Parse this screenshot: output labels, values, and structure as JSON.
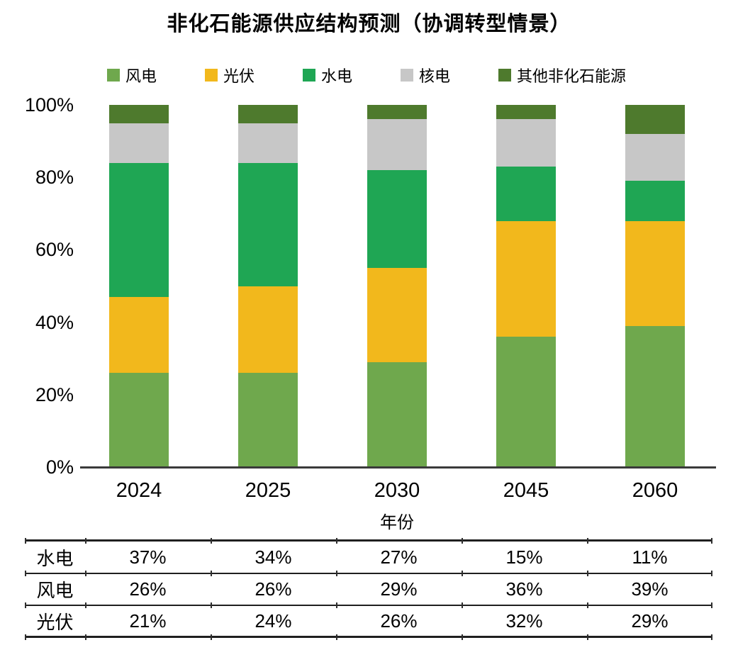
{
  "title": "非化石能源供应结构预测（协调转型情景）",
  "chart_data": {
    "type": "bar",
    "stacked": true,
    "title": "非化石能源供应结构预测（协调转型情景）",
    "categories": [
      "2024",
      "2025",
      "2030",
      "2045",
      "2060"
    ],
    "series": [
      {
        "name": "风电",
        "color": "#6FA84D",
        "values": [
          26,
          26,
          29,
          36,
          39
        ]
      },
      {
        "name": "光伏",
        "color": "#F2B81C",
        "values": [
          21,
          24,
          26,
          32,
          29
        ]
      },
      {
        "name": "水电",
        "color": "#1FA654",
        "values": [
          37,
          34,
          27,
          15,
          11
        ]
      },
      {
        "name": "核电",
        "color": "#C7C7C7",
        "values": [
          11,
          11,
          14,
          13,
          13
        ]
      },
      {
        "name": "其他非化石能源",
        "color": "#4E7A2D",
        "values": [
          5,
          5,
          4,
          4,
          8
        ]
      }
    ],
    "xlabel": "年份",
    "ylabel": "",
    "ylim": [
      0,
      100
    ],
    "yticks": [
      0,
      20,
      40,
      60,
      80,
      100
    ],
    "ytick_labels": [
      "0%",
      "20%",
      "40%",
      "60%",
      "80%",
      "100%"
    ],
    "grid": false,
    "legend_position": "top"
  },
  "table": {
    "rows": [
      {
        "label": "水电",
        "values": [
          "37%",
          "34%",
          "27%",
          "15%",
          "11%"
        ]
      },
      {
        "label": "风电",
        "values": [
          "26%",
          "26%",
          "29%",
          "36%",
          "39%"
        ]
      },
      {
        "label": "光伏",
        "values": [
          "21%",
          "24%",
          "26%",
          "32%",
          "29%"
        ]
      }
    ]
  }
}
